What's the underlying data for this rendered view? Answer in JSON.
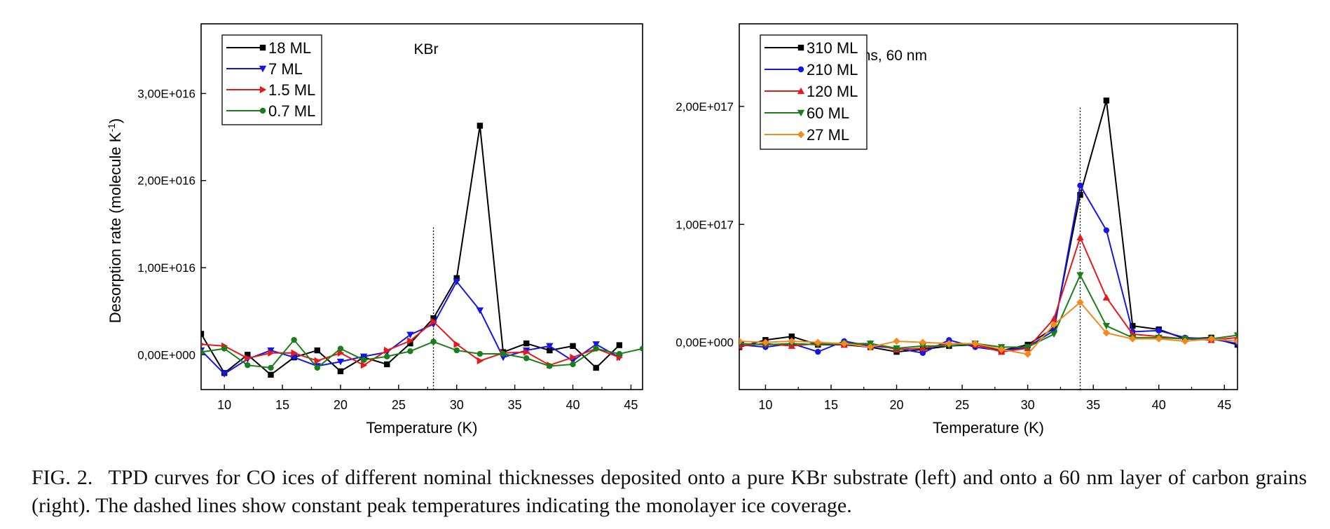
{
  "chart_data": [
    {
      "type": "line",
      "title": "KBr",
      "xlabel": "Temperature (K)",
      "ylabel": "Desorption rate (molecule K",
      "ylabel_sup": "-1",
      "ylabel_end": ")",
      "xlim": [
        8,
        46
      ],
      "ylim": [
        -4000000000000000.0,
        3.8e+16
      ],
      "xticks": [
        10,
        15,
        20,
        25,
        30,
        35,
        40,
        45
      ],
      "yticks": [
        0,
        1e+16,
        2e+16,
        3e+16
      ],
      "ytick_labels": [
        "0,00E+000",
        "1,00E+016",
        "2,00E+016",
        "3,00E+016"
      ],
      "vline_x": 28,
      "vline_ymax": 1.48e+16,
      "legend_position": "top-left",
      "series": [
        {
          "name": "18 ML",
          "color": "#000000",
          "marker": "square",
          "x": [
            8,
            10,
            12,
            14,
            16,
            18,
            20,
            22,
            24,
            26,
            28,
            30,
            32,
            34,
            36,
            38,
            40,
            42,
            44
          ],
          "y": [
            2400000000000000.0,
            -2100000000000000.0,
            0,
            -2300000000000000.0,
            -300000000000000.0,
            500000000000000.0,
            -1900000000000000.0,
            -300000000000000.0,
            -1100000000000000.0,
            1300000000000000.0,
            4200000000000000.0,
            8800000000000000.0,
            2.63e+16,
            300000000000000.0,
            1300000000000000.0,
            500000000000000.0,
            1000000000000000.0,
            -1500000000000000.0,
            1100000000000000.0
          ]
        },
        {
          "name": "7 ML",
          "color": "#1515e6",
          "marker": "triangle-down",
          "x": [
            8,
            10,
            12,
            14,
            16,
            18,
            20,
            22,
            24,
            26,
            28,
            30,
            32,
            34,
            36,
            38,
            40,
            42,
            44
          ],
          "y": [
            500000000000000.0,
            -2200000000000000.0,
            -500000000000000.0,
            500000000000000.0,
            -300000000000000.0,
            -1300000000000000.0,
            -800000000000000.0,
            -200000000000000.0,
            300000000000000.0,
            2300000000000000.0,
            3500000000000000.0,
            8400000000000000.0,
            5100000000000000.0,
            -300000000000000.0,
            500000000000000.0,
            1000000000000000.0,
            -700000000000000.0,
            1200000000000000.0,
            -300000000000000.0
          ]
        },
        {
          "name": "1.5 ML",
          "color": "#e41a1c",
          "marker": "triangle-right",
          "x": [
            8,
            10,
            12,
            14,
            16,
            18,
            20,
            22,
            24,
            26,
            28,
            30,
            32,
            34,
            36,
            38,
            40,
            42,
            44
          ],
          "y": [
            1200000000000000.0,
            1000000000000000.0,
            -400000000000000.0,
            200000000000000.0,
            200000000000000.0,
            -700000000000000.0,
            200000000000000.0,
            -1200000000000000.0,
            500000000000000.0,
            1600000000000000.0,
            3800000000000000.0,
            1200000000000000.0,
            -700000000000000.0,
            200000000000000.0,
            300000000000000.0,
            -1200000000000000.0,
            -300000000000000.0,
            700000000000000.0,
            -300000000000000.0
          ]
        },
        {
          "name": "0.7 ML",
          "color": "#1a7f1a",
          "marker": "circle",
          "x": [
            8,
            10,
            12,
            14,
            16,
            18,
            20,
            22,
            24,
            26,
            28,
            30,
            32,
            34,
            36,
            38,
            40,
            42,
            44,
            46
          ],
          "y": [
            300000000000000.0,
            700000000000000.0,
            -1200000000000000.0,
            -1500000000000000.0,
            1700000000000000.0,
            -1500000000000000.0,
            700000000000000.0,
            -600000000000000.0,
            -200000000000000.0,
            400000000000000.0,
            1500000000000000.0,
            500000000000000.0,
            100000000000000.0,
            100000000000000.0,
            -400000000000000.0,
            -1300000000000000.0,
            -1100000000000000.0,
            700000000000000.0,
            100000000000000.0,
            700000000000000.0
          ]
        }
      ]
    },
    {
      "type": "line",
      "title": "Carbon grains, 60 nm",
      "xlabel": "Temperature (K)",
      "ylabel": "",
      "xlim": [
        8,
        46
      ],
      "ylim": [
        -4e+16,
        2.7e+17
      ],
      "xticks": [
        10,
        15,
        20,
        25,
        30,
        35,
        40,
        45
      ],
      "yticks": [
        0,
        1e+17,
        2e+17
      ],
      "ytick_labels": [
        "0,00E+000",
        "1,00E+017",
        "2,00E+017"
      ],
      "vline_x": 34,
      "vline_ymax": 2e+17,
      "legend_position": "top-left",
      "series": [
        {
          "name": "310 ML",
          "color": "#000000",
          "marker": "square",
          "x": [
            8,
            10,
            12,
            14,
            16,
            18,
            20,
            22,
            24,
            26,
            28,
            30,
            32,
            34,
            36,
            38,
            40,
            42,
            44,
            46
          ],
          "y": [
            -4000000000000000.0,
            2000000000000000.0,
            5000000000000000.0,
            -2000000000000000.0,
            -2000000000000000.0,
            -4000000000000000.0,
            -8000000000000000.0,
            -6000000000000000.0,
            -3000000000000000.0,
            -2000000000000000.0,
            -7000000000000000.0,
            -2000000000000000.0,
            1.2e+16,
            1.25e+17,
            2.05e+17,
            1.4e+16,
            1.1e+16,
            3000000000000000.0,
            4000000000000000.0,
            -2000000000000000.0
          ]
        },
        {
          "name": "210 ML",
          "color": "#1515e6",
          "marker": "circle",
          "x": [
            8,
            10,
            12,
            14,
            16,
            18,
            20,
            22,
            24,
            26,
            28,
            30,
            32,
            34,
            36,
            38,
            40,
            42,
            44,
            46
          ],
          "y": [
            -2000000000000000.0,
            -4000000000000000.0,
            -1000000000000000.0,
            -8000000000000000.0,
            1000000000000000.0,
            -3000000000000000.0,
            -5000000000000000.0,
            -9000000000000000.0,
            2000000000000000.0,
            -4000000000000000.0,
            -7000000000000000.0,
            -4000000000000000.0,
            1e+16,
            1.33e+17,
            9.5e+16,
            9000000000000000.0,
            1e+16,
            4000000000000000.0,
            3000000000000000.0,
            -1000000000000000.0
          ]
        },
        {
          "name": "120 ML",
          "color": "#e41a1c",
          "marker": "triangle-up",
          "x": [
            8,
            10,
            12,
            14,
            16,
            18,
            20,
            22,
            24,
            26,
            28,
            30,
            32,
            34,
            36,
            38,
            40,
            42,
            44,
            46
          ],
          "y": [
            -3000000000000000.0,
            -1000000000000000.0,
            -3000000000000000.0,
            -1000000000000000.0,
            -2000000000000000.0,
            -1000000000000000.0,
            -6000000000000000.0,
            -5000000000000000.0,
            -1000000000000000.0,
            -2000000000000000.0,
            -8000000000000000.0,
            -5000000000000000.0,
            2e+16,
            8.9e+16,
            3.8e+16,
            7000000000000000.0,
            5000000000000000.0,
            3000000000000000.0,
            2000000000000000.0,
            4000000000000000.0
          ]
        },
        {
          "name": "60 ML",
          "color": "#1a7f1a",
          "marker": "triangle-down",
          "x": [
            8,
            10,
            12,
            14,
            16,
            18,
            20,
            22,
            24,
            26,
            28,
            30,
            32,
            34,
            36,
            38,
            40,
            42,
            44,
            46
          ],
          "y": [
            -1000000000000000.0,
            -2000000000000000.0,
            -1000000000000000.0,
            -2000000000000000.0,
            -1000000000000000.0,
            -1000000000000000.0,
            -5000000000000000.0,
            -3000000000000000.0,
            -3000000000000000.0,
            -1000000000000000.0,
            -4000000000000000.0,
            -4000000000000000.0,
            7000000000000000.0,
            5.7e+16,
            1.4e+16,
            4000000000000000.0,
            4000000000000000.0,
            3000000000000000.0,
            3000000000000000.0,
            6000000000000000.0
          ]
        },
        {
          "name": "27 ML",
          "color": "#f28a1e",
          "marker": "diamond",
          "x": [
            8,
            10,
            12,
            14,
            16,
            18,
            20,
            22,
            24,
            26,
            28,
            30,
            32,
            34,
            36,
            38,
            40,
            42,
            44,
            46
          ],
          "y": [
            1000000000000000.0,
            0,
            1000000000000000.0,
            0,
            -1000000000000000.0,
            -4000000000000000.0,
            1000000000000000.0,
            0,
            -1000000000000000.0,
            -1000000000000000.0,
            -6000000000000000.0,
            -1e+16,
            1.5e+16,
            3.4e+16,
            8000000000000000.0,
            3000000000000000.0,
            3000000000000000.0,
            1000000000000000.0,
            3000000000000000.0,
            1000000000000000.0
          ]
        }
      ]
    }
  ],
  "caption": {
    "label": "FIG. 2.",
    "text": "TPD curves for CO ices of different nominal thicknesses deposited onto a pure KBr substrate (left) and onto a 60 nm layer of carbon grains (right). The dashed lines show constant peak temperatures indicating the monolayer ice coverage."
  }
}
